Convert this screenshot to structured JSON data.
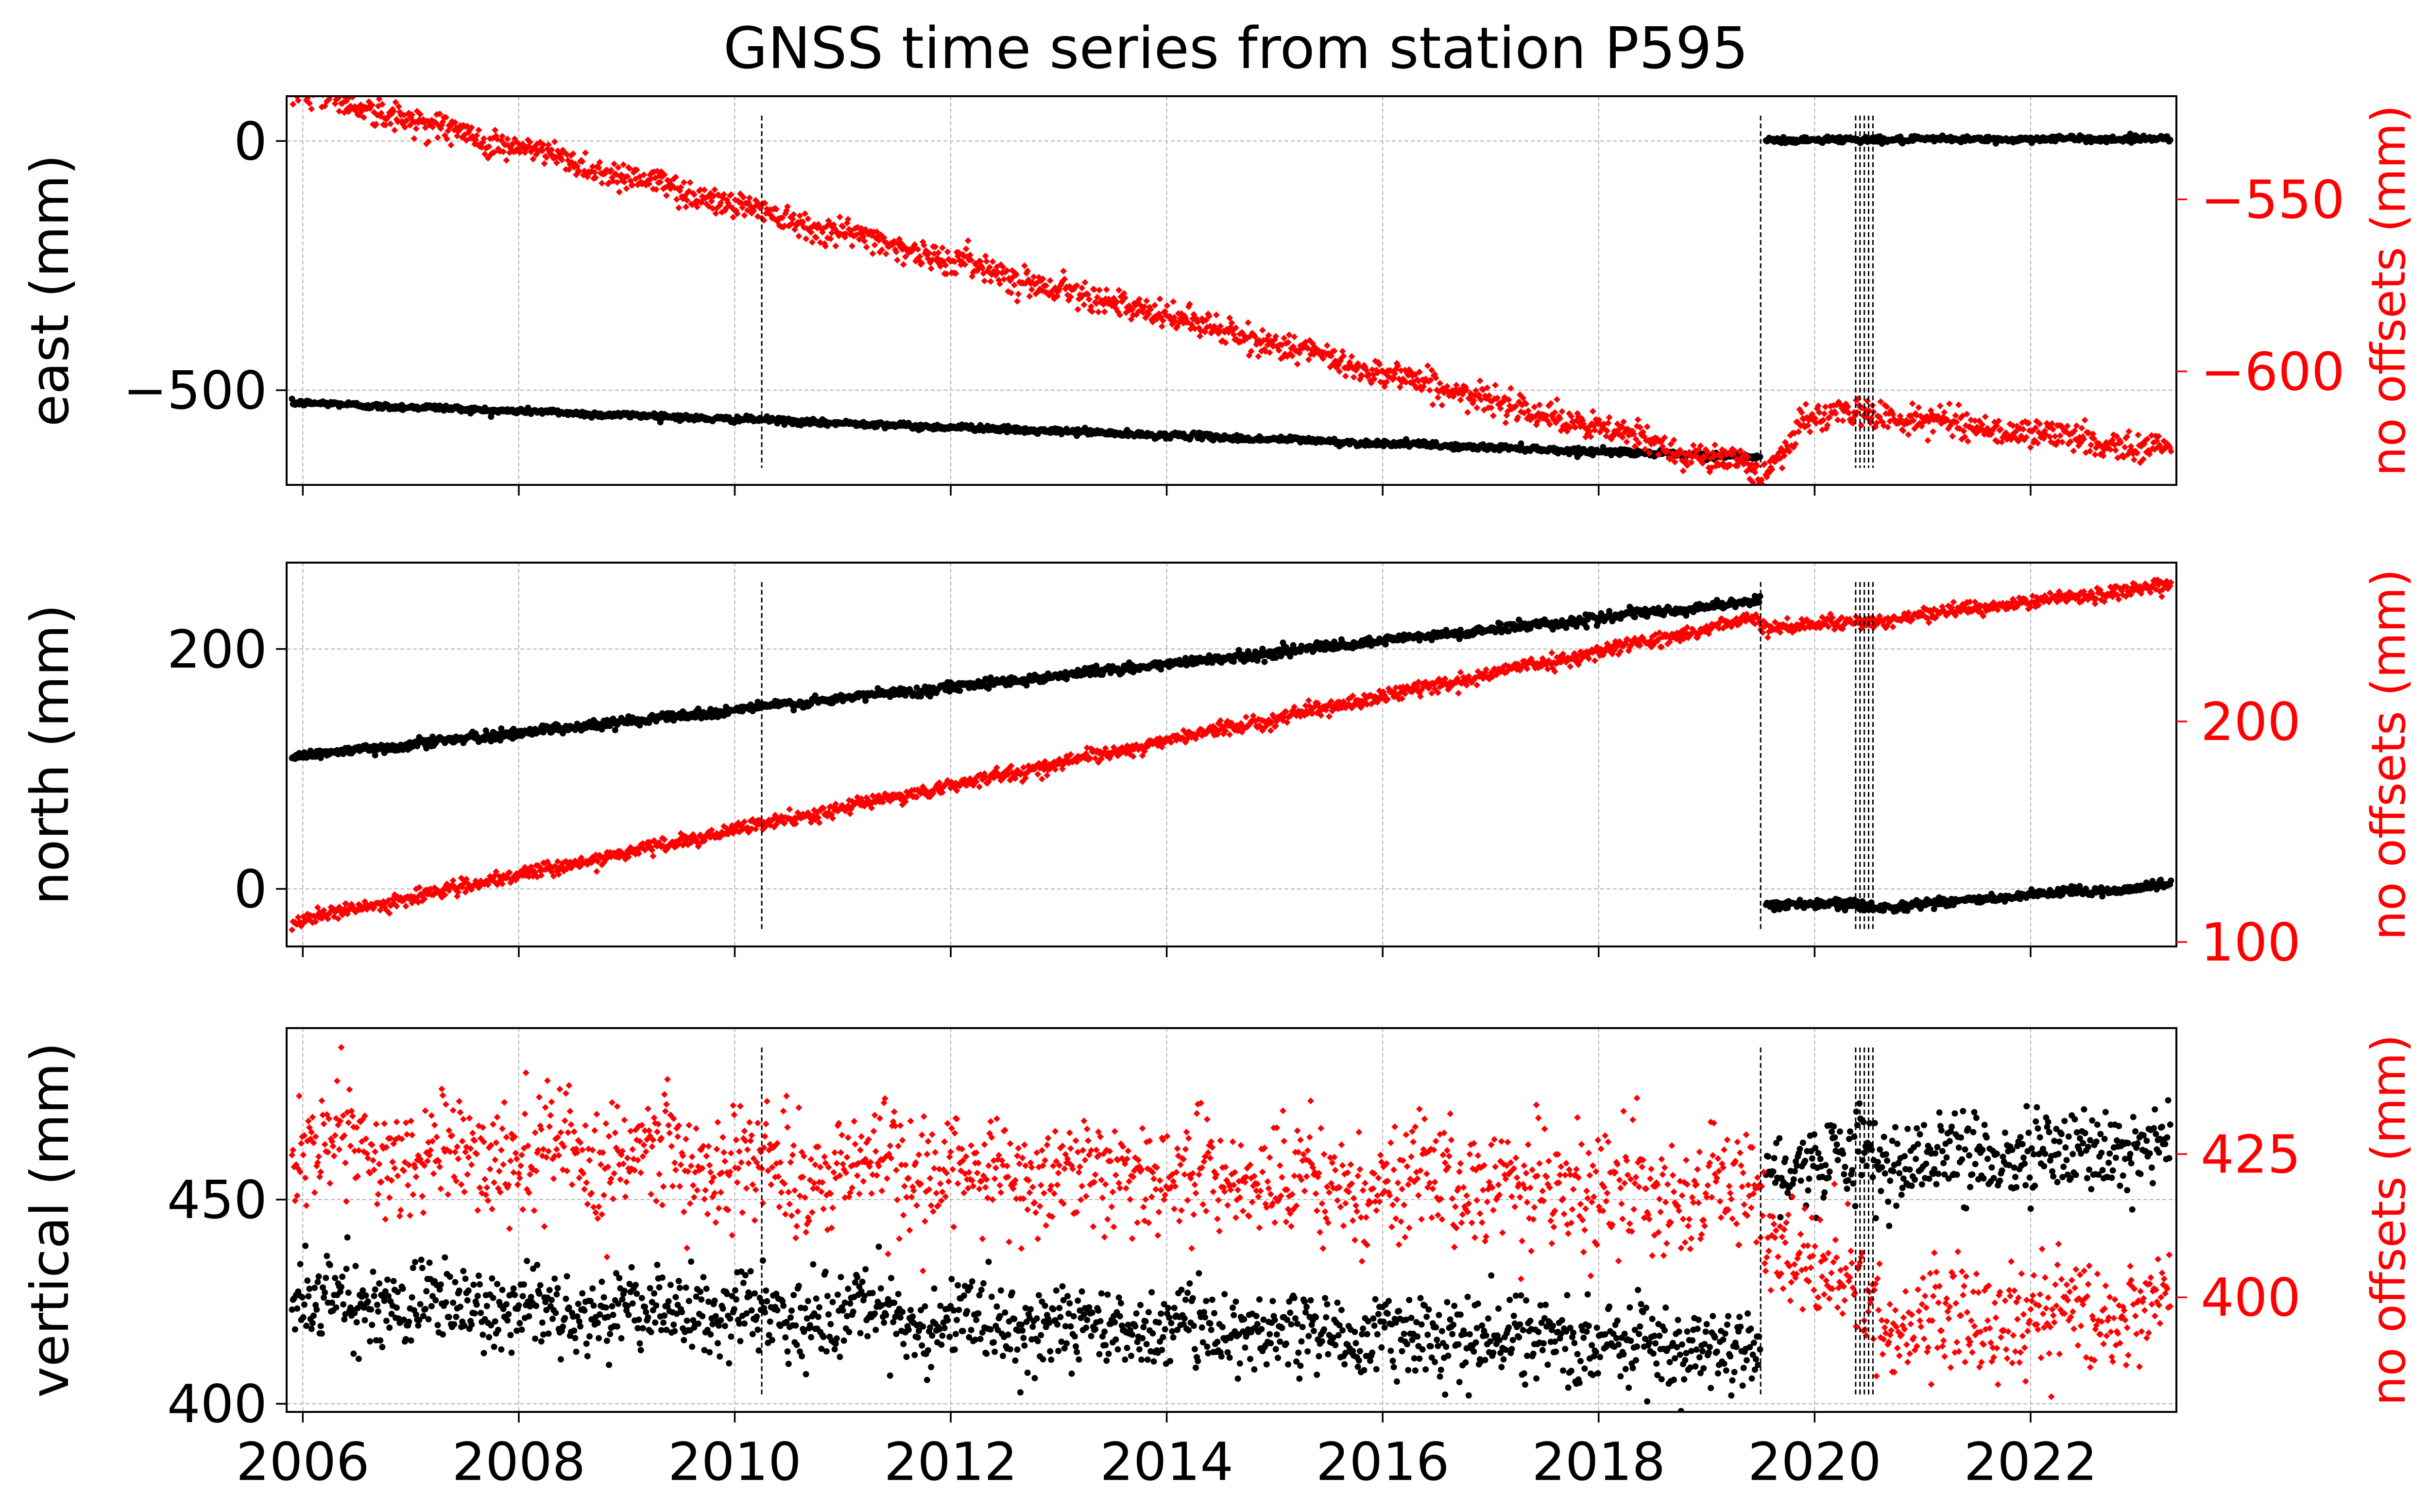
{
  "title": "GNSS time series from station P595",
  "colors": {
    "offsets_removed": "#000000",
    "no_offsets": "#ff0000",
    "grid": "#b0b0b0"
  },
  "chart_data": [
    {
      "type": "scatter",
      "panel": "east",
      "ylabel": "east (mm)",
      "y2label": "no offsets (mm)",
      "xlim": [
        2005.85,
        2023.35
      ],
      "ylim": [
        -690,
        90
      ],
      "y2lim": [
        -633,
        -520
      ],
      "xticks": [
        2006,
        2008,
        2010,
        2012,
        2014,
        2016,
        2018,
        2020,
        2022
      ],
      "yticks": [
        0,
        -500
      ],
      "y2ticks": [
        -550,
        -600
      ],
      "offset_epochs": [
        2010.25,
        2019.5,
        2020.38,
        2020.42,
        2020.46,
        2020.5,
        2020.54
      ],
      "series": [
        {
          "axis": "left",
          "color": "#000000",
          "marker": "circle",
          "segments": [
            {
              "x": [
                2005.9,
                2019.5
              ],
              "y": [
                -525,
                -635
              ],
              "noise": 3
            },
            {
              "x": [
                2019.55,
                2023.3
              ],
              "y": [
                2,
                5
              ],
              "noise": 3
            }
          ]
        },
        {
          "axis": "right",
          "color": "#ff0000",
          "marker": "diamond",
          "segments": [
            {
              "x": [
                2005.9,
                2019.4
              ],
              "y": [
                -518,
                -628
              ],
              "noise": 2
            },
            {
              "x": [
                2019.4,
                2019.5
              ],
              "y": [
                -628,
                -631
              ],
              "noise": 2
            },
            {
              "x": [
                2019.5,
                2019.9
              ],
              "y": [
                -631,
                -614
              ],
              "noise": 2
            },
            {
              "x": [
                2019.9,
                2020.45
              ],
              "y": [
                -614,
                -612
              ],
              "noise": 2
            },
            {
              "x": [
                2020.45,
                2023.3
              ],
              "y": [
                -612,
                -623
              ],
              "noise": 2
            }
          ]
        }
      ]
    },
    {
      "type": "scatter",
      "panel": "north",
      "ylabel": "north (mm)",
      "y2label": "no offsets (mm)",
      "xlim": [
        2005.85,
        2023.35
      ],
      "ylim": [
        -48,
        272
      ],
      "y2lim": [
        98,
        272
      ],
      "xticks": [
        2006,
        2008,
        2010,
        2012,
        2014,
        2016,
        2018,
        2020,
        2022
      ],
      "yticks": [
        200,
        0
      ],
      "y2ticks": [
        200,
        100
      ],
      "offset_epochs": [
        2010.25,
        2019.5,
        2020.38,
        2020.42,
        2020.46,
        2020.5,
        2020.54
      ],
      "series": [
        {
          "axis": "left",
          "color": "#000000",
          "marker": "circle",
          "segments": [
            {
              "x": [
                2005.9,
                2019.5
              ],
              "y": [
                110,
                240
              ],
              "noise": 2
            },
            {
              "x": [
                2019.55,
                2020.45
              ],
              "y": [
                -12,
                -14
              ],
              "noise": 2
            },
            {
              "x": [
                2020.45,
                2023.3
              ],
              "y": [
                -16,
                3
              ],
              "noise": 2
            }
          ]
        },
        {
          "axis": "right",
          "color": "#ff0000",
          "marker": "diamond",
          "segments": [
            {
              "x": [
                2005.9,
                2019.5
              ],
              "y": [
                109,
                247
              ],
              "noise": 1.5
            },
            {
              "x": [
                2019.5,
                2020.45
              ],
              "y": [
                243,
                245
              ],
              "noise": 1.5
            },
            {
              "x": [
                2020.45,
                2023.3
              ],
              "y": [
                245,
                262
              ],
              "noise": 1.5
            }
          ]
        }
      ]
    },
    {
      "type": "scatter",
      "panel": "vertical",
      "ylabel": "vertical (mm)",
      "y2label": "no offsets (mm)",
      "xlim": [
        2005.85,
        2023.35
      ],
      "ylim": [
        398,
        492
      ],
      "y2lim": [
        380,
        447
      ],
      "xticks": [
        2006,
        2008,
        2010,
        2012,
        2014,
        2016,
        2018,
        2020,
        2022
      ],
      "xticklabels": [
        "2006",
        "2008",
        "2010",
        "2012",
        "2014",
        "2016",
        "2018",
        "2020",
        "2022"
      ],
      "yticks": [
        450,
        400
      ],
      "y2ticks": [
        425,
        400
      ],
      "offset_epochs": [
        2010.25,
        2019.5,
        2020.38,
        2020.42,
        2020.46,
        2020.5,
        2020.54
      ],
      "series": [
        {
          "axis": "left",
          "color": "#000000",
          "marker": "circle",
          "segments": [
            {
              "x": [
                2005.9,
                2019.5
              ],
              "y": [
                425,
                414
              ],
              "noise": 5
            },
            {
              "x": [
                2019.55,
                2023.3
              ],
              "y": [
                459,
                462
              ],
              "noise": 5
            }
          ]
        },
        {
          "axis": "right",
          "color": "#ff0000",
          "marker": "diamond",
          "segments": [
            {
              "x": [
                2005.9,
                2019.3
              ],
              "y": [
                426,
                418
              ],
              "noise": 5
            },
            {
              "x": [
                2019.3,
                2020.7
              ],
              "y": [
                418,
                395
              ],
              "noise": 5
            },
            {
              "x": [
                2020.7,
                2023.3
              ],
              "y": [
                395,
                398
              ],
              "noise": 5
            }
          ]
        }
      ]
    }
  ]
}
